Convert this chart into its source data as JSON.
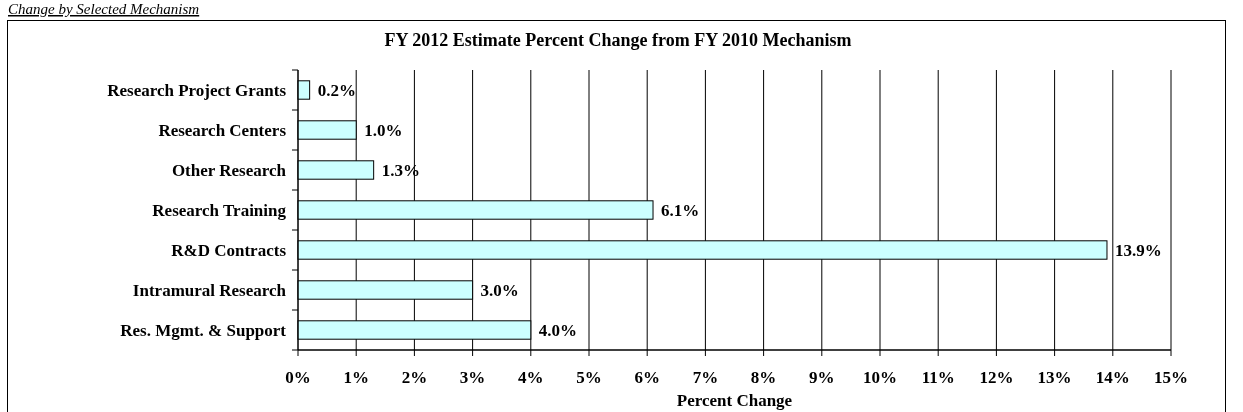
{
  "chart_data": {
    "type": "bar",
    "orientation": "horizontal",
    "title": "FY 2012 Estimate Percent Change from FY 2010 Mechanism",
    "xlabel": "Percent Change",
    "annotations": [
      "Change by Selected Mechanism"
    ],
    "categories": [
      "Research Project Grants",
      "Research Centers",
      "Other Research",
      "Research Training",
      "R&D Contracts",
      "Intramural Research",
      "Res. Mgmt. & Support"
    ],
    "values": [
      0.2,
      1.0,
      1.3,
      6.1,
      13.9,
      3.0,
      4.0
    ],
    "value_labels": [
      "0.2%",
      "1.0%",
      "1.3%",
      "6.1%",
      "13.9%",
      "3.0%",
      "4.0%"
    ],
    "color": "#ccffff",
    "xlim": [
      0,
      15
    ],
    "xticks": [
      {
        "value": 0,
        "label": "0%"
      },
      {
        "value": 1,
        "label": "1%"
      },
      {
        "value": 2,
        "label": "2%"
      },
      {
        "value": 3,
        "label": "3%"
      },
      {
        "value": 4,
        "label": "4%"
      },
      {
        "value": 5,
        "label": "5%"
      },
      {
        "value": 6,
        "label": "6%"
      },
      {
        "value": 7,
        "label": "7%"
      },
      {
        "value": 8,
        "label": "8%"
      },
      {
        "value": 9,
        "label": "9%"
      },
      {
        "value": 10,
        "label": "10%"
      },
      {
        "value": 11,
        "label": "11%"
      },
      {
        "value": 12,
        "label": "12%"
      },
      {
        "value": 13,
        "label": "13%"
      },
      {
        "value": 14,
        "label": "14%"
      },
      {
        "value": 15,
        "label": "15%"
      }
    ],
    "grid": "x"
  }
}
